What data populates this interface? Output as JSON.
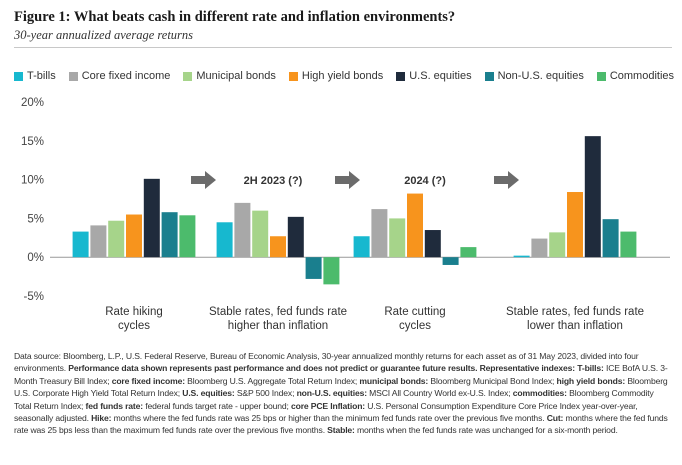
{
  "figure": {
    "title": "Figure 1: What beats cash in different rate and inflation environments?",
    "subtitle": "30-year annualized average returns"
  },
  "colors": {
    "T-bills": "#17b8cf",
    "Core fixed income": "#a8a8a8",
    "Municipal bonds": "#a6d48a",
    "High yield bonds": "#f7941d",
    "U.S. equities": "#1f2b3c",
    "Non-U.S. equities": "#1a7f8e",
    "Commodities": "#4cbb6c",
    "arrow": "#6b6b6b",
    "axis": "#999999"
  },
  "chart_data": {
    "type": "bar",
    "categories": [
      "Rate hiking cycles",
      "Stable rates, fed funds rate higher than inflation",
      "Rate cutting cycles",
      "Stable rates, fed funds rate lower than inflation"
    ],
    "category_lines": [
      [
        "Rate hiking",
        "cycles"
      ],
      [
        "Stable rates, fed funds rate",
        "higher than inflation"
      ],
      [
        "Rate cutting",
        "cycles"
      ],
      [
        "Stable rates, fed funds rate",
        "lower than inflation"
      ]
    ],
    "series": [
      {
        "name": "T-bills",
        "values": [
          3.3,
          4.5,
          2.7,
          0.2
        ]
      },
      {
        "name": "Core fixed income",
        "values": [
          4.1,
          7.0,
          6.2,
          2.4
        ]
      },
      {
        "name": "Municipal bonds",
        "values": [
          4.7,
          6.0,
          5.0,
          3.2
        ]
      },
      {
        "name": "High yield bonds",
        "values": [
          5.5,
          2.7,
          8.2,
          8.4
        ]
      },
      {
        "name": "U.S. equities",
        "values": [
          10.1,
          5.2,
          3.5,
          15.6
        ]
      },
      {
        "name": "Non-U.S. equities",
        "values": [
          5.8,
          -2.8,
          -1.0,
          4.9
        ]
      },
      {
        "name": "Commodities",
        "values": [
          5.4,
          -3.5,
          1.3,
          3.3
        ]
      }
    ],
    "ylim": [
      -5,
      20
    ],
    "yticks": [
      -5,
      0,
      5,
      10,
      15,
      20
    ],
    "ytick_labels": [
      "-5%",
      "0%",
      "5%",
      "10%",
      "15%",
      "20%"
    ],
    "annotations": [
      "2H 2023 (?)",
      "2024 (?)"
    ],
    "legend_position": "top"
  },
  "footnote": {
    "p1": "Data source: Bloomberg, L.P., U.S. Federal Reserve, Bureau of Economic Analysis, 30-year annualized monthly returns for each asset as of 31 May 2023, divided into four environments. ",
    "b1": "Performance data shown represents past performance and does not predict or guarantee future results. Representative indexes: T-bills:",
    "p2": " ICE BofA U.S. 3-Month Treasury Bill Index; ",
    "b2": "core fixed income:",
    "p3": " Bloomberg U.S. Aggregate Total Return Index; ",
    "b3": "municipal bonds:",
    "p4": " Bloomberg Municipal Bond Index; ",
    "b4": "high yield bonds:",
    "p5": " Bloomberg U.S. Corporate High Yield Total Return Index; ",
    "b5": "U.S. equities:",
    "p6": " S&P 500 Index; ",
    "b6": "non-U.S. equities:",
    "p7": " MSCI All Country World ex-U.S. Index; ",
    "b7": "commodities:",
    "p8": " Bloomberg Commodity Total Return Index; ",
    "b8": "fed funds rate:",
    "p9": " federal funds target rate - upper bound; ",
    "b9": "core PCE Inflation:",
    "p10": " U.S. Personal Consumption Expenditure Core Price Index year-over-year, seasonally adjusted. ",
    "b10": "Hike:",
    "p11": " months where the fed funds rate was 25 bps or higher than the minimum fed funds rate over the previous five months. ",
    "b11": "Cut:",
    "p12": " months where the fed funds rate was 25 bps less than the maximum fed funds rate over the previous five months. ",
    "b12": "Stable:",
    "p13": " months when the fed funds rate was unchanged for a six-month period."
  }
}
